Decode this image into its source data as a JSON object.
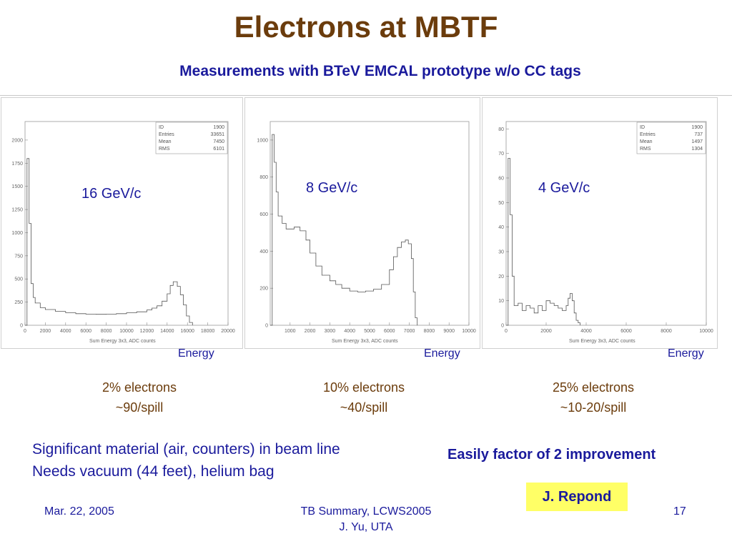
{
  "slide": {
    "title": "Electrons at MBTF",
    "subtitle": "Measurements with BTeV EMCAL prototype w/o CC tags"
  },
  "plots": [
    {
      "label": "16 GeV/c",
      "energy_label": "Energy",
      "fraction": "2% electrons",
      "rate": "~90/spill",
      "xaxis_title": "Sum Energy 3x3, ADC counts",
      "stats": [
        [
          "ID",
          "1900"
        ],
        [
          "Entries",
          "33651"
        ],
        [
          "Mean",
          "7450"
        ],
        [
          "RMS",
          "6101"
        ]
      ]
    },
    {
      "label": "8 GeV/c",
      "energy_label": "Energy",
      "fraction": "10% electrons",
      "rate": "~40/spill",
      "xaxis_title": "Sum Energy 3x3, ADC counts",
      "stats": []
    },
    {
      "label": "4 GeV/c",
      "energy_label": "Energy",
      "fraction": "25% electrons",
      "rate": "~10-20/spill",
      "xaxis_title": "Sum Energy 3x3, ADC counts",
      "stats": [
        [
          "ID",
          "1900"
        ],
        [
          "Entries",
          "737"
        ],
        [
          "Mean",
          "1497"
        ],
        [
          "RMS",
          "1304"
        ]
      ]
    }
  ],
  "chart_data": [
    {
      "type": "area",
      "title": "",
      "xlabel": "Sum Energy 3x3, ADC counts",
      "ylabel": "",
      "xlim": [
        0,
        20000
      ],
      "ylim": [
        0,
        2200
      ],
      "xticks": [
        0,
        2000,
        4000,
        6000,
        8000,
        10000,
        12000,
        14000,
        16000,
        18000,
        20000
      ],
      "yticks": [
        0,
        250,
        500,
        750,
        1000,
        1250,
        1500,
        1750,
        2000
      ],
      "series": [
        {
          "x": [
            0,
            200,
            400,
            600,
            800,
            1000,
            1500,
            2000,
            3000,
            4000,
            5000,
            6000,
            7000,
            8000,
            9000,
            10000,
            11000,
            12000,
            12500,
            13000,
            13500,
            14000,
            14300,
            14600,
            15000,
            15300,
            15600,
            15900,
            16200,
            16500
          ],
          "y": [
            0,
            1800,
            1100,
            450,
            300,
            240,
            190,
            170,
            150,
            135,
            125,
            120,
            118,
            120,
            125,
            135,
            145,
            165,
            185,
            210,
            260,
            340,
            430,
            470,
            420,
            330,
            220,
            100,
            30,
            0
          ]
        }
      ]
    },
    {
      "type": "area",
      "title": "",
      "xlabel": "Sum Energy 3x3, ADC counts",
      "ylabel": "",
      "xlim": [
        0,
        10000
      ],
      "ylim": [
        0,
        1100
      ],
      "xticks": [
        1000,
        2000,
        3000,
        4000,
        5000,
        6000,
        7000,
        8000,
        9000,
        10000
      ],
      "yticks": [
        0,
        200,
        400,
        600,
        800,
        1000
      ],
      "series": [
        {
          "x": [
            0,
            100,
            200,
            300,
            400,
            600,
            800,
            1000,
            1200,
            1500,
            1800,
            2000,
            2300,
            2600,
            3000,
            3300,
            3600,
            4000,
            4400,
            4800,
            5200,
            5600,
            6000,
            6200,
            6400,
            6600,
            6800,
            6950,
            7100,
            7200,
            7300,
            7400
          ],
          "y": [
            0,
            1030,
            880,
            720,
            590,
            550,
            520,
            520,
            530,
            510,
            460,
            390,
            320,
            270,
            240,
            220,
            200,
            185,
            180,
            185,
            195,
            220,
            300,
            370,
            420,
            450,
            460,
            440,
            360,
            180,
            40,
            0
          ]
        }
      ]
    },
    {
      "type": "area",
      "title": "",
      "xlabel": "Sum Energy 3x3, ADC counts",
      "ylabel": "",
      "xlim": [
        0,
        10000
      ],
      "ylim": [
        0,
        83
      ],
      "xticks": [
        0,
        2000,
        4000,
        6000,
        8000,
        10000
      ],
      "yticks": [
        0,
        10,
        20,
        30,
        40,
        50,
        60,
        70,
        80
      ],
      "series": [
        {
          "x": [
            0,
            100,
            200,
            300,
            400,
            600,
            800,
            1000,
            1200,
            1400,
            1600,
            1800,
            2000,
            2200,
            2400,
            2600,
            2800,
            3000,
            3100,
            3200,
            3300,
            3400,
            3500,
            3600,
            3700
          ],
          "y": [
            0,
            68,
            45,
            20,
            8,
            9,
            6,
            8,
            7,
            5,
            8,
            6,
            10,
            9,
            8,
            7,
            6,
            8,
            11,
            13,
            10,
            5,
            2,
            1,
            0
          ]
        }
      ]
    }
  ],
  "notes": {
    "line1": "Significant material (air, counters) in beam line",
    "line2": "Needs vacuum (44 feet), helium bag",
    "improvement": "Easily factor of 2 improvement",
    "credit": "J. Repond"
  },
  "footer": {
    "date": "Mar. 22, 2005",
    "event": "TB Summary, LCWS2005",
    "author": "J. Yu, UTA",
    "page": "17"
  }
}
